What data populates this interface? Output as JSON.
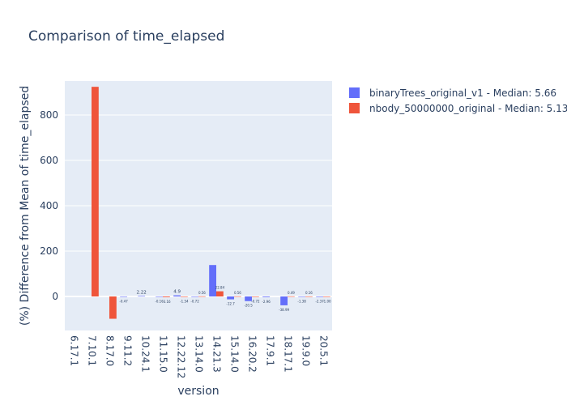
{
  "chart_data": {
    "type": "bar",
    "title": "Comparison of time_elapsed",
    "xlabel": "version",
    "ylabel": "(%) Difference from Mean of time_elapsed",
    "categories": [
      "6.17.1",
      "7.10.1",
      "8.17.0",
      "9.11.2",
      "10.24.1",
      "11.15.0",
      "12.22.12",
      "13.14.0",
      "14.21.3",
      "15.14.0",
      "16.20.2",
      "17.9.1",
      "18.17.1",
      "19.9.0",
      "20.5.1"
    ],
    "ylim": [
      -150,
      950
    ],
    "yticks": [
      0,
      200,
      400,
      600,
      800
    ],
    "grid": true,
    "legend_position": "top-right",
    "series": [
      {
        "name": "binaryTrees_original_v1 - Median: 5.66",
        "color": "#636efa",
        "values": [
          null,
          null,
          null,
          -0.47,
          2.22,
          -0.16,
          4.9,
          -0.72,
          138.6,
          -12.7,
          -20.5,
          -2.96,
          -38.99,
          -1.38,
          -2.37
        ],
        "labels": [
          "",
          "",
          "",
          "-0.47",
          "2.22",
          "-0.16",
          "4.9",
          "-0.72",
          "",
          "-12.7",
          "-20.5",
          "-2.96",
          "-38.99",
          "-1.38",
          "-2.37"
        ]
      },
      {
        "name": "nbody_50000000_original - Median: 5.13",
        "color": "#ef553b",
        "values": [
          null,
          924.4,
          -98.3,
          null,
          null,
          -3.16,
          -1.54,
          0.56,
          22.84,
          0.56,
          -0.72,
          null,
          0.49,
          0.16,
          -1.0
        ],
        "labels": [
          "",
          "",
          "",
          "",
          "",
          "-3.16",
          "-1.54",
          "0.56",
          "22.84",
          "0.56",
          "-0.72",
          "",
          "0.49",
          "0.16",
          "-1.00"
        ]
      }
    ]
  }
}
